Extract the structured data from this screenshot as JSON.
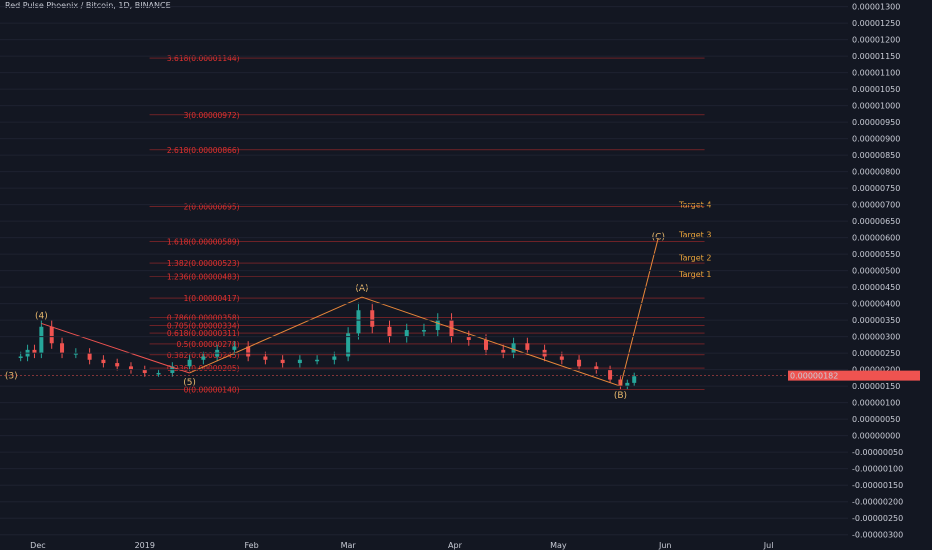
{
  "chart_data": {
    "type": "candlestick",
    "title": "Red Pulse Phoenix / Bitcoin, 1D, BINANCE",
    "price_axis": {
      "ticks": [
        "0.00001300",
        "0.00001250",
        "0.00001200",
        "0.00001150",
        "0.00001100",
        "0.00001050",
        "0.00001000",
        "0.00000950",
        "0.00000900",
        "0.00000850",
        "0.00000800",
        "0.00000750",
        "0.00000700",
        "0.00000650",
        "0.00000600",
        "0.00000550",
        "0.00000500",
        "0.00000450",
        "0.00000400",
        "0.00000350",
        "0.00000300",
        "0.00000250",
        "0.00000200",
        "0.00000150",
        "0.00000100",
        "0.00000050",
        "0.00000000",
        "-0.00000050",
        "-0.00000100",
        "-0.00000150",
        "-0.00000200",
        "-0.00000250",
        "-0.00000300"
      ],
      "range": [
        -3.1e-06,
        1.32e-05
      ],
      "current_price_label": "0.00000182"
    },
    "time_axis": {
      "ticks": [
        "Dec",
        "2019",
        "Feb",
        "Mar",
        "Apr",
        "May",
        "Jun",
        "Jul"
      ]
    },
    "candles": [
      {
        "d": "2018-11-26",
        "v": 2.4e-06
      },
      {
        "d": "2018-11-28",
        "v": 2.6e-06
      },
      {
        "d": "2018-11-30",
        "v": 2.5e-06
      },
      {
        "d": "2018-12-02",
        "v": 3.3e-06
      },
      {
        "d": "2018-12-05",
        "v": 2.8e-06
      },
      {
        "d": "2018-12-08",
        "v": 2.5e-06
      },
      {
        "d": "2018-12-12",
        "v": 2.5e-06
      },
      {
        "d": "2018-12-16",
        "v": 2.3e-06
      },
      {
        "d": "2018-12-20",
        "v": 2.2e-06
      },
      {
        "d": "2018-12-24",
        "v": 2.1e-06
      },
      {
        "d": "2018-12-28",
        "v": 2e-06
      },
      {
        "d": "2019-01-01",
        "v": 1.9e-06
      },
      {
        "d": "2019-01-05",
        "v": 1.9e-06
      },
      {
        "d": "2019-01-09",
        "v": 2.1e-06
      },
      {
        "d": "2019-01-14",
        "v": 2.3e-06
      },
      {
        "d": "2019-01-18",
        "v": 2.4e-06
      },
      {
        "d": "2019-01-22",
        "v": 2.6e-06
      },
      {
        "d": "2019-01-27",
        "v": 2.7e-06
      },
      {
        "d": "2019-01-31",
        "v": 2.4e-06
      },
      {
        "d": "2019-02-05",
        "v": 2.3e-06
      },
      {
        "d": "2019-02-10",
        "v": 2.2e-06
      },
      {
        "d": "2019-02-15",
        "v": 2.3e-06
      },
      {
        "d": "2019-02-20",
        "v": 2.3e-06
      },
      {
        "d": "2019-02-25",
        "v": 2.4e-06
      },
      {
        "d": "2019-03-01",
        "v": 3.1e-06
      },
      {
        "d": "2019-03-04",
        "v": 3.8e-06
      },
      {
        "d": "2019-03-08",
        "v": 3.3e-06
      },
      {
        "d": "2019-03-13",
        "v": 3e-06
      },
      {
        "d": "2019-03-18",
        "v": 3.2e-06
      },
      {
        "d": "2019-03-23",
        "v": 3.2e-06
      },
      {
        "d": "2019-03-27",
        "v": 3.5e-06
      },
      {
        "d": "2019-03-31",
        "v": 3e-06
      },
      {
        "d": "2019-04-05",
        "v": 2.9e-06
      },
      {
        "d": "2019-04-10",
        "v": 2.6e-06
      },
      {
        "d": "2019-04-15",
        "v": 2.5e-06
      },
      {
        "d": "2019-04-18",
        "v": 2.8e-06
      },
      {
        "d": "2019-04-22",
        "v": 2.6e-06
      },
      {
        "d": "2019-04-27",
        "v": 2.4e-06
      },
      {
        "d": "2019-05-02",
        "v": 2.3e-06
      },
      {
        "d": "2019-05-07",
        "v": 2.1e-06
      },
      {
        "d": "2019-05-12",
        "v": 2e-06
      },
      {
        "d": "2019-05-16",
        "v": 1.7e-06
      },
      {
        "d": "2019-05-19",
        "v": 1.5e-06
      },
      {
        "d": "2019-05-21",
        "v": 1.6e-06
      },
      {
        "d": "2019-05-23",
        "v": 1.8e-06
      }
    ],
    "fib_levels": [
      {
        "ratio": "0",
        "label": "0(0.00000140)",
        "value": 1.4e-06
      },
      {
        "ratio": "0.236",
        "label": "0.236(0.00000205)",
        "value": 2.05e-06
      },
      {
        "ratio": "0.382",
        "label": "0.382(0.00000245)",
        "value": 2.45e-06
      },
      {
        "ratio": "0.5",
        "label": "0.5(0.00000278)",
        "value": 2.78e-06
      },
      {
        "ratio": "0.618",
        "label": "0.618(0.00000311)",
        "value": 3.11e-06
      },
      {
        "ratio": "0.705",
        "label": "0.705(0.00000334)",
        "value": 3.34e-06
      },
      {
        "ratio": "0.786",
        "label": "0.786(0.00000358)",
        "value": 3.58e-06
      },
      {
        "ratio": "1",
        "label": "1(0.00000417)",
        "value": 4.17e-06
      },
      {
        "ratio": "1.236",
        "label": "1.236(0.00000483)",
        "value": 4.83e-06
      },
      {
        "ratio": "1.382",
        "label": "1.382(0.00000523)",
        "value": 5.23e-06
      },
      {
        "ratio": "1.618",
        "label": "1.618(0.00000589)",
        "value": 5.89e-06
      },
      {
        "ratio": "2",
        "label": "2(0.00000695)",
        "value": 6.95e-06
      },
      {
        "ratio": "2.618",
        "label": "2.618(0.00000866)",
        "value": 8.66e-06
      },
      {
        "ratio": "3",
        "label": "3(0.00000972)",
        "value": 9.72e-06
      },
      {
        "ratio": "3.618",
        "label": "3.618(0.00001144)",
        "value": 1.144e-05
      }
    ],
    "wave_points": [
      {
        "label": "(3)",
        "date": "2018-11-25",
        "value": 2.1e-06
      },
      {
        "label": "(4)",
        "date": "2018-12-02",
        "value": 3.4e-06
      },
      {
        "label": "(5)",
        "date": "2019-01-14",
        "value": 1.9e-06
      },
      {
        "label": "(A)",
        "date": "2019-03-05",
        "value": 4.2e-06
      },
      {
        "label": "(B)",
        "date": "2019-05-19",
        "value": 1.5e-06
      },
      {
        "label": "(C)",
        "date": "2019-05-30",
        "value": 6e-06
      }
    ],
    "targets": [
      {
        "label": "Target 4",
        "value": 7e-06
      },
      {
        "label": "Target 3",
        "value": 6.1e-06
      },
      {
        "label": "Target 2",
        "value": 5.4e-06
      },
      {
        "label": "Target 1",
        "value": 4.9e-06
      }
    ],
    "colors": {
      "background": "#131722",
      "up": "#26a69a",
      "down": "#ef5350",
      "fib": "#e0312f",
      "wave": "#e8873a",
      "target": "#e8a33a"
    }
  }
}
